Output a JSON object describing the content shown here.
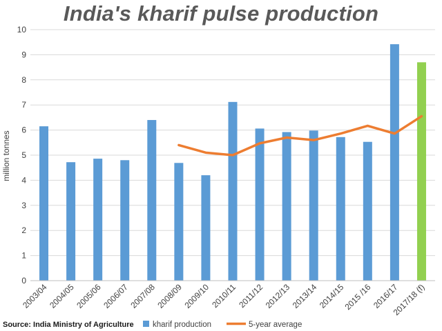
{
  "chart_data": {
    "type": "bar",
    "title": "India's kharif pulse production",
    "xlabel": "",
    "ylabel": "million tonnes",
    "ylim": [
      0,
      10
    ],
    "yticks": [
      0,
      1,
      2,
      3,
      4,
      5,
      6,
      7,
      8,
      9,
      10
    ],
    "grid": true,
    "categories": [
      "2003/04",
      "2004/05",
      "2005/06",
      "2006/07",
      "2007/08",
      "2008/09",
      "2009/10",
      "2010/11",
      "2011/12",
      "2012/13",
      "2013/14",
      "2014/15",
      "2015 /16",
      "2016/17",
      "2017/18 (f)"
    ],
    "series": [
      {
        "name": "kharif production",
        "kind": "bar",
        "color": "#5b9bd5",
        "highlight_color": "#92d050",
        "highlight_index": 14,
        "values": [
          6.15,
          4.72,
          4.86,
          4.8,
          6.4,
          4.69,
          4.2,
          7.12,
          6.06,
          5.92,
          5.98,
          5.72,
          5.53,
          9.42,
          8.7
        ]
      },
      {
        "name": "5-year average",
        "kind": "line",
        "color": "#ed7d31",
        "values": [
          null,
          null,
          null,
          null,
          null,
          5.4,
          5.1,
          5.0,
          5.47,
          5.7,
          5.6,
          5.86,
          6.17,
          5.86,
          6.55
        ]
      }
    ],
    "legend_position": "bottom",
    "source": "Source: India Ministry of Agriculture"
  }
}
